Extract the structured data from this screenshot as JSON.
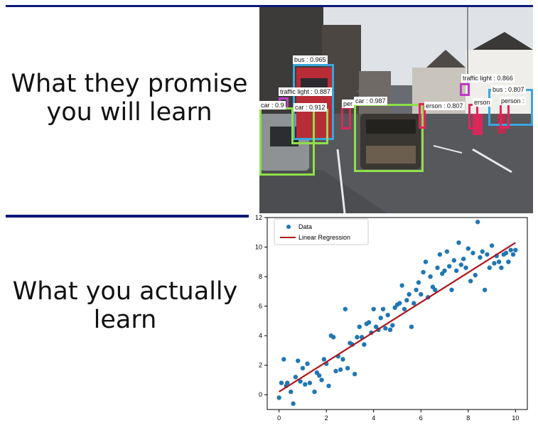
{
  "meme": {
    "top_caption": "What they promise\nyou will learn",
    "bottom_caption": "What you actually\nlearn"
  },
  "detection": {
    "colors": {
      "bus": "#3aa6dc",
      "car": "#8ee04a",
      "traffic": "#c03cc8",
      "person": "#e2255a"
    },
    "labels": [
      {
        "text": "bus : 0.965",
        "kind": "bus"
      },
      {
        "text": "traffic light : 0.887",
        "kind": "traffic"
      },
      {
        "text": "car : 0.9",
        "kind": "car"
      },
      {
        "text": "car : 0.912",
        "kind": "car"
      },
      {
        "text": "per",
        "kind": "person"
      },
      {
        "text": "car : 0.987",
        "kind": "car"
      },
      {
        "text": "erson : 0.807",
        "kind": "person"
      },
      {
        "text": "traffic light : 0.866",
        "kind": "traffic"
      },
      {
        "text": "bus : 0.807",
        "kind": "bus"
      },
      {
        "text": "erson",
        "kind": "person"
      },
      {
        "text": "person :",
        "kind": "person"
      }
    ]
  },
  "chart_data": {
    "type": "scatter",
    "xlim": [
      -0.5,
      10.5
    ],
    "ylim": [
      -1.0,
      12.0
    ],
    "xticks": [
      0,
      2,
      4,
      6,
      8,
      10
    ],
    "yticks": [
      0,
      2,
      4,
      6,
      8,
      10,
      12
    ],
    "legend_position": "top-left",
    "grid": false,
    "series": [
      {
        "name": "Data",
        "type": "scatter",
        "color": "#1f77b4",
        "x": [
          0.0,
          0.1,
          0.2,
          0.3,
          0.35,
          0.5,
          0.6,
          0.7,
          0.8,
          0.9,
          1.0,
          1.1,
          1.2,
          1.3,
          1.5,
          1.6,
          1.7,
          1.8,
          1.9,
          2.0,
          2.1,
          2.2,
          2.3,
          2.4,
          2.5,
          2.6,
          2.7,
          2.8,
          2.9,
          3.0,
          3.1,
          3.2,
          3.3,
          3.4,
          3.5,
          3.6,
          3.7,
          3.8,
          3.9,
          4.0,
          4.1,
          4.2,
          4.3,
          4.4,
          4.5,
          4.6,
          4.7,
          4.8,
          4.9,
          5.0,
          5.1,
          5.2,
          5.3,
          5.4,
          5.5,
          5.6,
          5.7,
          5.8,
          5.9,
          6.0,
          6.1,
          6.2,
          6.3,
          6.4,
          6.5,
          6.6,
          6.7,
          6.8,
          6.9,
          7.0,
          7.1,
          7.2,
          7.3,
          7.4,
          7.5,
          7.6,
          7.7,
          7.8,
          7.9,
          8.0,
          8.1,
          8.2,
          8.3,
          8.4,
          8.5,
          8.6,
          8.7,
          8.8,
          8.9,
          9.0,
          9.1,
          9.2,
          9.3,
          9.4,
          9.5,
          9.6,
          9.7,
          9.8,
          9.9,
          10.0
        ],
        "y": [
          -0.2,
          0.8,
          2.4,
          0.6,
          0.8,
          0.2,
          -0.6,
          1.2,
          2.3,
          0.9,
          1.8,
          0.7,
          2.1,
          0.8,
          0.2,
          1.5,
          1.3,
          1.0,
          2.4,
          2.1,
          0.6,
          4.0,
          3.9,
          1.6,
          2.6,
          1.7,
          2.4,
          5.8,
          1.8,
          3.5,
          3.4,
          1.4,
          3.9,
          4.6,
          3.9,
          3.4,
          4.8,
          4.9,
          4.2,
          5.8,
          4.6,
          4.4,
          5.2,
          5.8,
          4.5,
          5.4,
          4.4,
          4.7,
          5.9,
          6.1,
          6.2,
          7.4,
          5.8,
          6.4,
          6.8,
          4.6,
          6.2,
          7.1,
          7.6,
          6.8,
          8.3,
          9.0,
          6.6,
          8.0,
          7.3,
          7.1,
          8.6,
          9.5,
          8.2,
          8.4,
          9.7,
          8.7,
          7.1,
          9.1,
          8.4,
          10.3,
          8.8,
          9.2,
          8.6,
          9.9,
          7.7,
          9.6,
          8.1,
          11.7,
          9.3,
          9.7,
          7.1,
          9.5,
          8.6,
          10.1,
          8.9,
          9.4,
          9.0,
          8.6,
          9.5,
          9.6,
          9.0,
          9.8,
          9.5,
          9.8
        ]
      },
      {
        "name": "Linear Regression",
        "type": "line",
        "color": "#b0161c",
        "x": [
          0,
          10
        ],
        "y": [
          0.2,
          10.3
        ]
      }
    ]
  }
}
